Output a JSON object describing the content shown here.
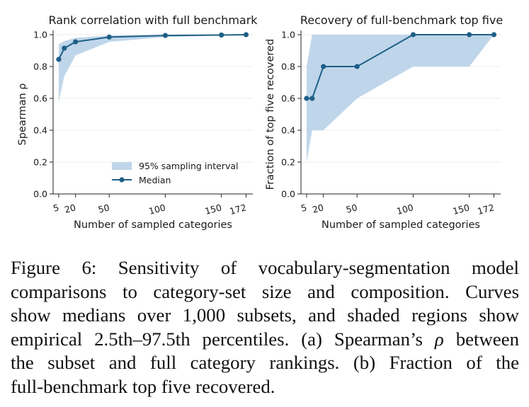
{
  "chart_data": [
    {
      "type": "line",
      "title": "Rank correlation with full benchmark",
      "xlabel": "Number of sampled categories",
      "ylabel": "Spearman ρ",
      "xlim": [
        0,
        178
      ],
      "ylim": [
        0.0,
        1.0
      ],
      "xticks": [
        5,
        20,
        50,
        100,
        150,
        172
      ],
      "xtick_labels": [
        "5",
        "20",
        "50",
        "100",
        "150",
        "172"
      ],
      "yticks": [
        0.0,
        0.2,
        0.4,
        0.6,
        0.8,
        1.0
      ],
      "ytick_labels": [
        "0.0",
        "0.2",
        "0.4",
        "0.6",
        "0.8",
        "1.0"
      ],
      "grid": "horizontal",
      "legend_position": "lower-right",
      "series": [
        {
          "name": "Median",
          "type": "line",
          "color": "#1f5f87",
          "x": [
            5,
            10,
            20,
            50,
            100,
            150,
            172
          ],
          "y": [
            0.845,
            0.915,
            0.955,
            0.985,
            0.995,
            0.998,
            1.0
          ]
        },
        {
          "name": "95% sampling interval",
          "type": "band",
          "color": "#bfd6ea",
          "x": [
            5,
            10,
            20,
            50,
            100,
            150,
            172
          ],
          "lower": [
            0.58,
            0.74,
            0.87,
            0.955,
            0.985,
            0.995,
            1.0
          ],
          "upper": [
            0.94,
            0.96,
            0.98,
            0.995,
            0.999,
            1.0,
            1.0
          ]
        }
      ]
    },
    {
      "type": "line",
      "title": "Recovery of full-benchmark top five",
      "xlabel": "Number of sampled categories",
      "ylabel": "Fraction of top five recovered",
      "xlim": [
        0,
        178
      ],
      "ylim": [
        0.0,
        1.0
      ],
      "xticks": [
        5,
        20,
        50,
        100,
        150,
        172
      ],
      "xtick_labels": [
        "5",
        "20",
        "50",
        "100",
        "150",
        "172"
      ],
      "yticks": [
        0.0,
        0.2,
        0.4,
        0.6,
        0.8,
        1.0
      ],
      "ytick_labels": [
        "0.0",
        "0.2",
        "0.4",
        "0.6",
        "0.8",
        "1.0"
      ],
      "grid": "horizontal",
      "series": [
        {
          "name": "Median",
          "type": "line",
          "color": "#1f5f87",
          "x": [
            5,
            10,
            20,
            50,
            100,
            150,
            172
          ],
          "y": [
            0.6,
            0.6,
            0.8,
            0.8,
            1.0,
            1.0,
            1.0
          ]
        },
        {
          "name": "95% sampling interval",
          "type": "band",
          "color": "#bfd6ea",
          "x": [
            5,
            10,
            20,
            50,
            100,
            150,
            172
          ],
          "lower": [
            0.2,
            0.4,
            0.4,
            0.6,
            0.8,
            0.8,
            1.0
          ],
          "upper": [
            0.8,
            1.0,
            1.0,
            1.0,
            1.0,
            1.0,
            1.0
          ]
        }
      ]
    }
  ],
  "legend": {
    "band_label": "95% sampling interval",
    "line_label": "Median"
  },
  "caption": {
    "lines": [
      "Figure 6:  Sensitivity of vocabulary-segmentation model",
      "comparisons to category-set size and composition. Curves",
      "show medians over 1,000 subsets, and shaded regions show",
      "empirical 2.5th–97.5th percentiles. (a) Spearman’s <i>ρ</i> between",
      "the subset and full category rankings.  (b) Fraction of the",
      "full-benchmark top five recovered."
    ]
  }
}
